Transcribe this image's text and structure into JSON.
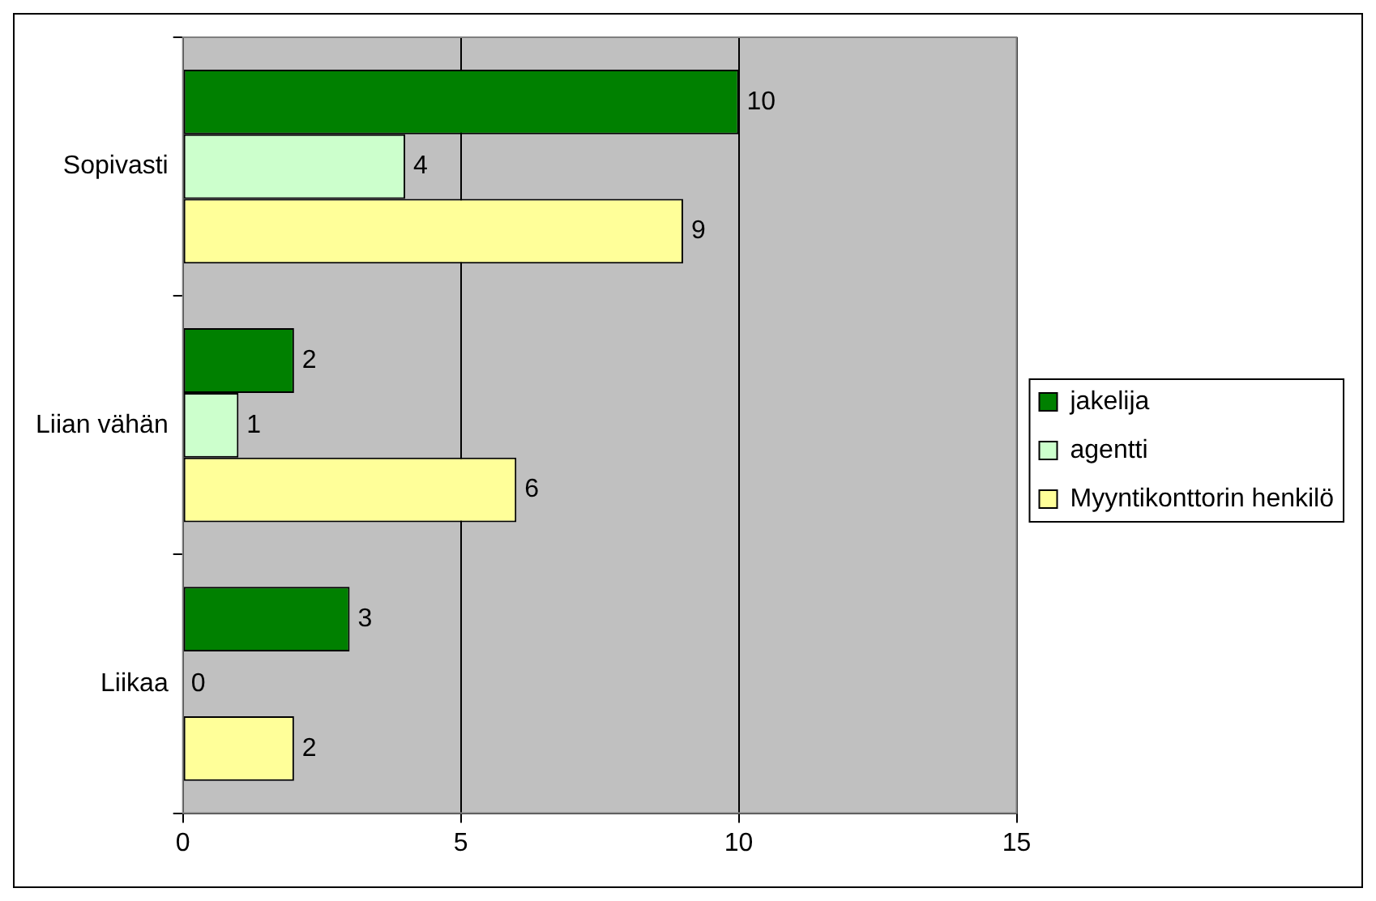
{
  "chart_data": {
    "type": "bar",
    "orientation": "horizontal",
    "categories": [
      "Sopivasti",
      "Liian vähän",
      "Liikaa"
    ],
    "series": [
      {
        "name": "jakelija",
        "color": "#008000",
        "values": [
          10,
          2,
          3
        ]
      },
      {
        "name": "agentti",
        "color": "#ccffcc",
        "values": [
          4,
          1,
          0
        ]
      },
      {
        "name": "Myyntikonttorin henkilö",
        "color": "#ffff99",
        "values": [
          9,
          6,
          2
        ]
      }
    ],
    "xlim": [
      0,
      15
    ],
    "xticks": [
      0,
      5,
      10,
      15
    ],
    "grid": "x",
    "legend": "right",
    "data_labels": true
  }
}
